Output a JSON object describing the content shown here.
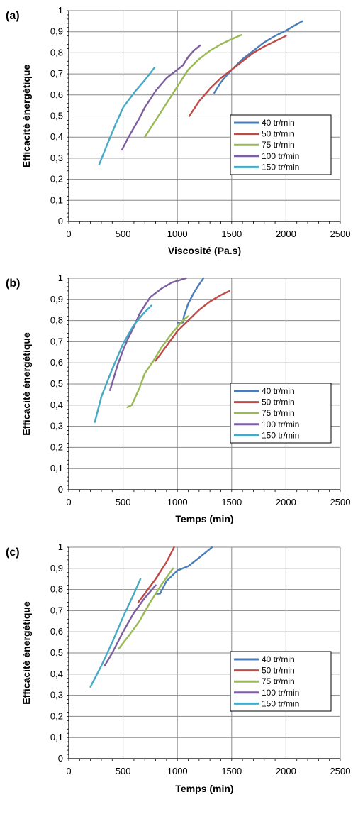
{
  "series_colors": [
    "#4A7EBB",
    "#BE4B48",
    "#98B954",
    "#7D5FA0",
    "#46AAC5"
  ],
  "chart_data": [
    {
      "type": "line",
      "panel_label": "(a)",
      "xlabel": "Viscosité (Pa.s)",
      "ylabel": "Efficacité énergétique",
      "xlim": [
        0,
        2500
      ],
      "ylim": [
        0,
        1
      ],
      "xticks": [
        0,
        500,
        1000,
        1500,
        2000,
        2500
      ],
      "yticks": [
        "0",
        "0,1",
        "0,2",
        "0,3",
        "0,4",
        "0,5",
        "0,6",
        "0,7",
        "0,8",
        "0,9",
        "1"
      ],
      "grid": true,
      "legend_position": "right",
      "series": [
        {
          "name": "40 tr/min",
          "points": [
            [
              1340,
              0.61
            ],
            [
              1400,
              0.66
            ],
            [
              1500,
              0.72
            ],
            [
              1600,
              0.77
            ],
            [
              1700,
              0.81
            ],
            [
              1800,
              0.85
            ],
            [
              1900,
              0.88
            ],
            [
              2000,
              0.905
            ],
            [
              2080,
              0.93
            ],
            [
              2150,
              0.95
            ]
          ]
        },
        {
          "name": "50 tr/min",
          "points": [
            [
              1110,
              0.5
            ],
            [
              1200,
              0.57
            ],
            [
              1300,
              0.63
            ],
            [
              1400,
              0.68
            ],
            [
              1500,
              0.72
            ],
            [
              1600,
              0.76
            ],
            [
              1700,
              0.8
            ],
            [
              1800,
              0.83
            ],
            [
              1900,
              0.855
            ],
            [
              2000,
              0.88
            ]
          ]
        },
        {
          "name": "75 tr/min",
          "points": [
            [
              700,
              0.4
            ],
            [
              800,
              0.48
            ],
            [
              900,
              0.56
            ],
            [
              1000,
              0.64
            ],
            [
              1100,
              0.72
            ],
            [
              1200,
              0.77
            ],
            [
              1300,
              0.81
            ],
            [
              1400,
              0.84
            ],
            [
              1500,
              0.865
            ],
            [
              1590,
              0.885
            ]
          ]
        },
        {
          "name": "100 tr/min",
          "points": [
            [
              490,
              0.34
            ],
            [
              550,
              0.4
            ],
            [
              650,
              0.49
            ],
            [
              700,
              0.54
            ],
            [
              800,
              0.62
            ],
            [
              900,
              0.68
            ],
            [
              1000,
              0.72
            ],
            [
              1050,
              0.74
            ],
            [
              1100,
              0.78
            ],
            [
              1150,
              0.81
            ],
            [
              1210,
              0.835
            ]
          ]
        },
        {
          "name": "150 tr/min",
          "points": [
            [
              280,
              0.27
            ],
            [
              350,
              0.36
            ],
            [
              430,
              0.46
            ],
            [
              500,
              0.54
            ],
            [
              600,
              0.61
            ],
            [
              700,
              0.67
            ],
            [
              790,
              0.73
            ]
          ]
        }
      ]
    },
    {
      "type": "line",
      "panel_label": "(b)",
      "xlabel": "Temps (min)",
      "ylabel": "Efficacité énergétique",
      "xlim": [
        0,
        2500
      ],
      "ylim": [
        0,
        1
      ],
      "xticks": [
        0,
        500,
        1000,
        1500,
        2000,
        2500
      ],
      "yticks": [
        "0",
        "0,1",
        "0,2",
        "0,3",
        "0,4",
        "0,5",
        "0,6",
        "0,7",
        "0,8",
        "0,9",
        "1"
      ],
      "grid": true,
      "legend_position": "right",
      "series": [
        {
          "name": "40 tr/min",
          "points": [
            [
              1000,
              0.79
            ],
            [
              1050,
              0.79
            ],
            [
              1060,
              0.82
            ],
            [
              1100,
              0.88
            ],
            [
              1150,
              0.93
            ],
            [
              1200,
              0.97
            ],
            [
              1240,
              1.0
            ]
          ]
        },
        {
          "name": "50 tr/min",
          "points": [
            [
              800,
              0.61
            ],
            [
              900,
              0.68
            ],
            [
              1000,
              0.75
            ],
            [
              1100,
              0.8
            ],
            [
              1200,
              0.85
            ],
            [
              1300,
              0.89
            ],
            [
              1400,
              0.92
            ],
            [
              1480,
              0.94
            ]
          ]
        },
        {
          "name": "75 tr/min",
          "points": [
            [
              540,
              0.39
            ],
            [
              580,
              0.4
            ],
            [
              650,
              0.48
            ],
            [
              700,
              0.55
            ],
            [
              780,
              0.61
            ],
            [
              850,
              0.67
            ],
            [
              950,
              0.74
            ],
            [
              1050,
              0.8
            ],
            [
              1100,
              0.82
            ]
          ]
        },
        {
          "name": "100 tr/min",
          "points": [
            [
              380,
              0.47
            ],
            [
              450,
              0.59
            ],
            [
              500,
              0.66
            ],
            [
              550,
              0.72
            ],
            [
              600,
              0.77
            ],
            [
              650,
              0.83
            ],
            [
              700,
              0.87
            ],
            [
              750,
              0.91
            ],
            [
              850,
              0.95
            ],
            [
              950,
              0.98
            ],
            [
              1080,
              1.0
            ]
          ]
        },
        {
          "name": "150 tr/min",
          "points": [
            [
              240,
              0.32
            ],
            [
              300,
              0.44
            ],
            [
              400,
              0.57
            ],
            [
              500,
              0.69
            ],
            [
              600,
              0.78
            ],
            [
              700,
              0.84
            ],
            [
              760,
              0.87
            ]
          ]
        }
      ]
    },
    {
      "type": "line",
      "panel_label": "(c)",
      "xlabel": "Temps (min)",
      "ylabel": "Efficacité énergétique",
      "xlim": [
        0,
        2500
      ],
      "ylim": [
        0,
        1
      ],
      "xticks": [
        0,
        500,
        1000,
        1500,
        2000,
        2500
      ],
      "yticks": [
        "0",
        "0,1",
        "0,2",
        "0,3",
        "0,4",
        "0,5",
        "0,6",
        "0,7",
        "0,8",
        "0,9",
        "1"
      ],
      "grid": true,
      "legend_position": "right",
      "series": [
        {
          "name": "40 tr/min",
          "points": [
            [
              800,
              0.78
            ],
            [
              840,
              0.78
            ],
            [
              900,
              0.84
            ],
            [
              1000,
              0.89
            ],
            [
              1100,
              0.91
            ],
            [
              1200,
              0.95
            ],
            [
              1320,
              1.0
            ]
          ]
        },
        {
          "name": "50 tr/min",
          "points": [
            [
              640,
              0.74
            ],
            [
              700,
              0.78
            ],
            [
              800,
              0.85
            ],
            [
              900,
              0.93
            ],
            [
              970,
              1.0
            ]
          ]
        },
        {
          "name": "75 tr/min",
          "points": [
            [
              460,
              0.52
            ],
            [
              550,
              0.58
            ],
            [
              650,
              0.65
            ],
            [
              750,
              0.74
            ],
            [
              850,
              0.82
            ],
            [
              960,
              0.9
            ]
          ]
        },
        {
          "name": "100 tr/min",
          "points": [
            [
              330,
              0.44
            ],
            [
              400,
              0.5
            ],
            [
              500,
              0.6
            ],
            [
              600,
              0.69
            ],
            [
              700,
              0.76
            ],
            [
              800,
              0.82
            ]
          ]
        },
        {
          "name": "150 tr/min",
          "points": [
            [
              200,
              0.34
            ],
            [
              300,
              0.44
            ],
            [
              400,
              0.55
            ],
            [
              500,
              0.67
            ],
            [
              600,
              0.78
            ],
            [
              660,
              0.85
            ]
          ]
        }
      ]
    }
  ]
}
